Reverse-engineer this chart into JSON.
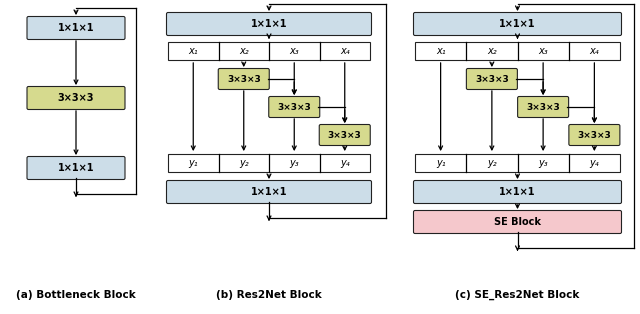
{
  "fig_width": 6.4,
  "fig_height": 3.14,
  "dpi": 100,
  "bg_color": "#ffffff",
  "blue_color": "#ccdde8",
  "green_color": "#d6da8e",
  "pink_color": "#f5c8cc",
  "label_111": "1×1×1",
  "label_333": "3×3×3",
  "label_se": "SE Block",
  "caption_a": "(a) Bottleneck Block",
  "caption_b": "(b) Res2Net Block",
  "caption_c": "(c) SE_Res2Net Block",
  "x_labels": [
    "x₁",
    "x₂",
    "x₃",
    "x₄"
  ],
  "y_labels": [
    "y₁",
    "y₂",
    "y₃",
    "y₄"
  ]
}
